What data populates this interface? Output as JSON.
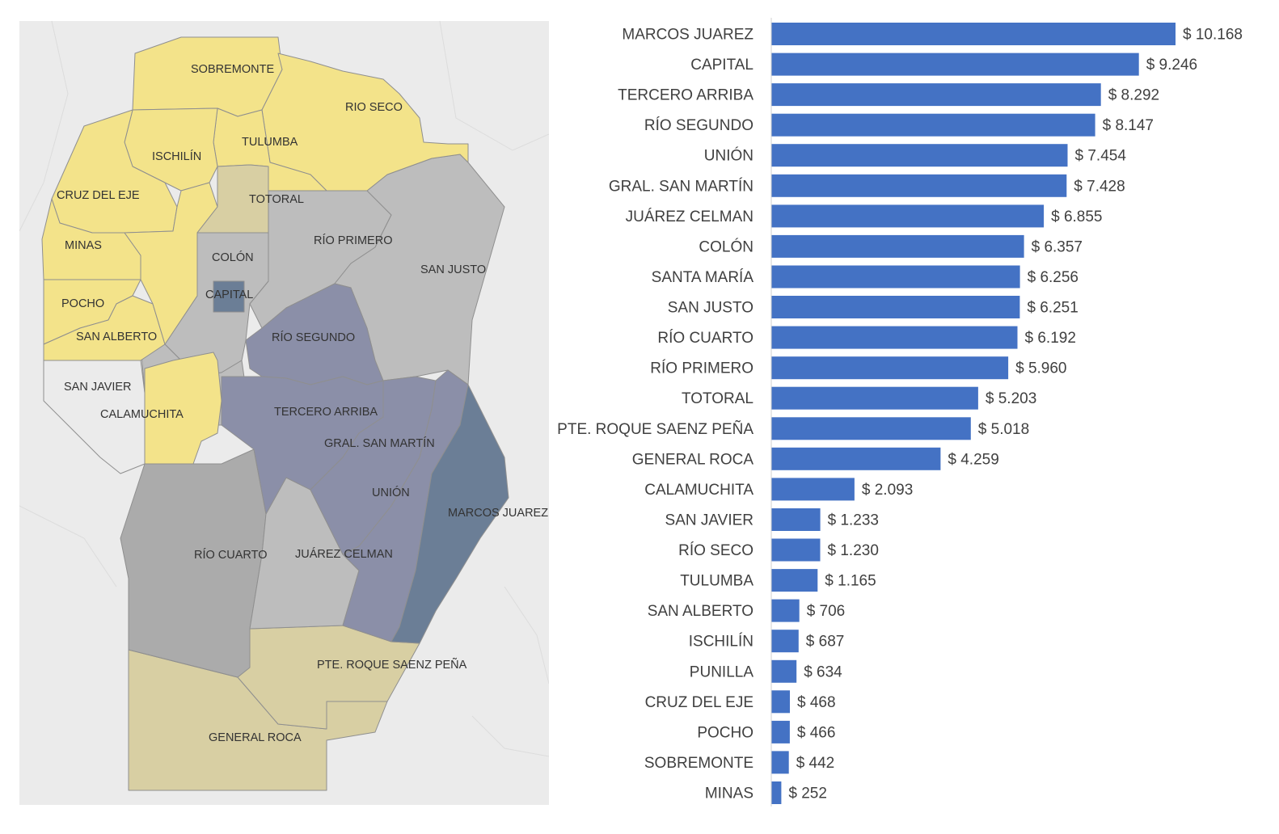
{
  "colors": {
    "bar": "#4472c4",
    "axis": "#d0d0d0",
    "text": "#404040",
    "map_background": "#ebebeb",
    "map_yellow": "#f3e38a",
    "map_khaki": "#d8cfa3",
    "map_gray": "#ababab",
    "map_gray_light": "#bdbdbd",
    "map_slate": "#8b8fa8",
    "map_dark": "#6b7e96"
  },
  "map": {
    "labels": [
      "SOBREMONTE",
      "RIO SECO",
      "TULUMBA",
      "ISCHILÍN",
      "CRUZ DEL EJE",
      "TOTORAL",
      "MINAS",
      "RÍO PRIMERO",
      "COLÓN",
      "SAN JUSTO",
      "CAPITAL",
      "POCHO",
      "RÍO SEGUNDO",
      "SAN ALBERTO",
      "SAN JAVIER",
      "TERCERO ARRIBA",
      "CALAMUCHITA",
      "GRAL. SAN MARTÍN",
      "UNIÓN",
      "MARCOS JUAREZ",
      "RÍO CUARTO",
      "JUÁREZ CELMAN",
      "PTE. ROQUE SAENZ PEÑA",
      "GENERAL ROCA"
    ]
  },
  "chart_data": {
    "type": "bar",
    "orientation": "horizontal",
    "categories": [
      "MARCOS JUAREZ",
      "CAPITAL",
      "TERCERO ARRIBA",
      "RÍO SEGUNDO",
      "UNIÓN",
      "GRAL. SAN MARTÍN",
      "JUÁREZ CELMAN",
      "COLÓN",
      "SANTA MARÍA",
      "SAN JUSTO",
      "RÍO CUARTO",
      "RÍO PRIMERO",
      "TOTORAL",
      "PTE. ROQUE SAENZ PEÑA",
      "GENERAL ROCA",
      "CALAMUCHITA",
      "SAN JAVIER",
      "RÍO SECO",
      "TULUMBA",
      "SAN ALBERTO",
      "ISCHILÍN",
      "PUNILLA",
      "CRUZ DEL EJE",
      "POCHO",
      "SOBREMONTE",
      "MINAS"
    ],
    "values": [
      10168,
      9246,
      8292,
      8147,
      7454,
      7428,
      6855,
      6357,
      6256,
      6251,
      6192,
      5960,
      5203,
      5018,
      4259,
      2093,
      1233,
      1230,
      1165,
      706,
      687,
      634,
      468,
      466,
      442,
      252
    ],
    "value_labels": [
      "$ 10.168",
      "$ 9.246",
      "$ 8.292",
      "$ 8.147",
      "$ 7.454",
      "$ 7.428",
      "$ 6.855",
      "$ 6.357",
      "$ 6.256",
      "$ 6.251",
      "$ 6.192",
      "$ 5.960",
      "$ 5.203",
      "$ 5.018",
      "$ 4.259",
      "$ 2.093",
      "$ 1.233",
      "$ 1.230",
      "$ 1.165",
      "$ 706",
      "$ 687",
      "$ 634",
      "$ 468",
      "$ 466",
      "$ 442",
      "$ 252"
    ],
    "xlim": [
      0,
      10168
    ],
    "grid": false,
    "legend": "none"
  }
}
